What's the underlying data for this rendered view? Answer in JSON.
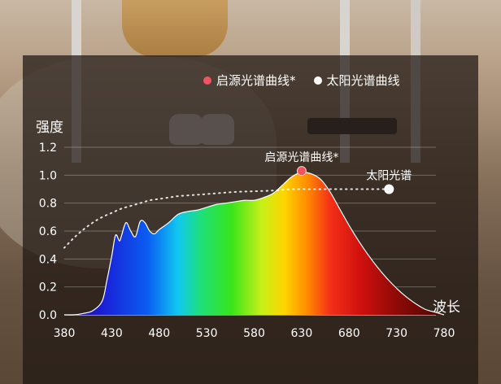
{
  "legend": [
    {
      "label": "启源光谱曲线*",
      "color": "#f0555f"
    },
    {
      "label": "太阳光谱曲线",
      "color": "#ffffff"
    }
  ],
  "annotations": {
    "qiyuan_peak_label": "启源光谱曲线*",
    "sun_label": "太阳光谱"
  },
  "chart_data": {
    "type": "area",
    "ylabel": "强度",
    "xlabel": "波长",
    "xlim": [
      380,
      780
    ],
    "ylim": [
      0,
      1.2
    ],
    "x_ticks": [
      "380",
      "430",
      "480",
      "530",
      "580",
      "630",
      "680",
      "730",
      "780"
    ],
    "y_ticks": [
      "0.0",
      "0.2",
      "0.4",
      "0.6",
      "0.8",
      "1.0",
      "1.2"
    ],
    "grid": true,
    "legend_placement": "top",
    "series": [
      {
        "name": "启源光谱曲线*",
        "style": "rainbow-filled-area",
        "x": [
          380,
          390,
          400,
          410,
          420,
          425,
          430,
          434,
          438,
          440,
          445,
          450,
          455,
          460,
          465,
          470,
          475,
          480,
          490,
          500,
          510,
          520,
          530,
          540,
          550,
          560,
          570,
          580,
          590,
          600,
          610,
          620,
          630,
          640,
          650,
          660,
          670,
          680,
          690,
          700,
          710,
          720,
          730,
          740,
          750,
          760,
          770,
          775,
          780
        ],
        "y": [
          0.0,
          0.0,
          0.01,
          0.03,
          0.1,
          0.25,
          0.42,
          0.57,
          0.53,
          0.56,
          0.66,
          0.6,
          0.56,
          0.67,
          0.66,
          0.6,
          0.58,
          0.61,
          0.66,
          0.72,
          0.74,
          0.75,
          0.77,
          0.79,
          0.8,
          0.81,
          0.82,
          0.82,
          0.84,
          0.87,
          0.93,
          0.99,
          1.02,
          1.01,
          0.97,
          0.88,
          0.76,
          0.64,
          0.53,
          0.43,
          0.34,
          0.26,
          0.19,
          0.13,
          0.08,
          0.04,
          0.02,
          0.01,
          0.0
        ]
      },
      {
        "name": "太阳光谱曲线",
        "style": "dotted-line",
        "x": [
          380,
          390,
          400,
          410,
          420,
          430,
          440,
          450,
          460,
          470,
          480,
          490,
          500,
          520,
          540,
          560,
          580,
          600,
          620,
          640,
          660,
          680,
          700,
          720
        ],
        "y": [
          0.48,
          0.55,
          0.61,
          0.66,
          0.7,
          0.73,
          0.76,
          0.78,
          0.8,
          0.82,
          0.83,
          0.84,
          0.85,
          0.86,
          0.87,
          0.88,
          0.885,
          0.89,
          0.9,
          0.9,
          0.9,
          0.9,
          0.9,
          0.9
        ]
      }
    ],
    "markers": [
      {
        "series": "启源光谱曲线*",
        "x": 630,
        "y": 1.03,
        "color": "#f0555f"
      },
      {
        "series": "太阳光谱曲线",
        "x": 722,
        "y": 0.9,
        "color": "#ffffff"
      }
    ]
  }
}
